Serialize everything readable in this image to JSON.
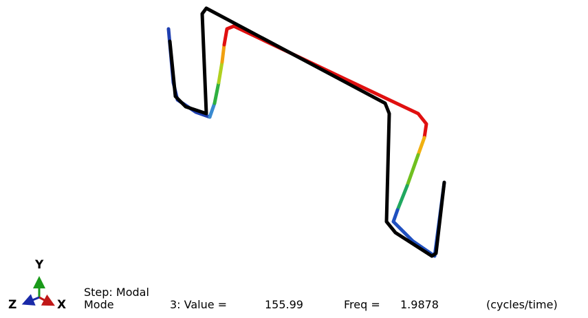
{
  "triad": {
    "y_label": "Y",
    "x_label": "X",
    "z_label": "Z"
  },
  "legend": {
    "step": "Step: Modal",
    "mode_label": "Mode",
    "mode_value": "3: Value =",
    "value": "155.99",
    "freq_label": "Freq =",
    "freq": "1.9878",
    "freq_unit": "(cycles/time)"
  }
}
